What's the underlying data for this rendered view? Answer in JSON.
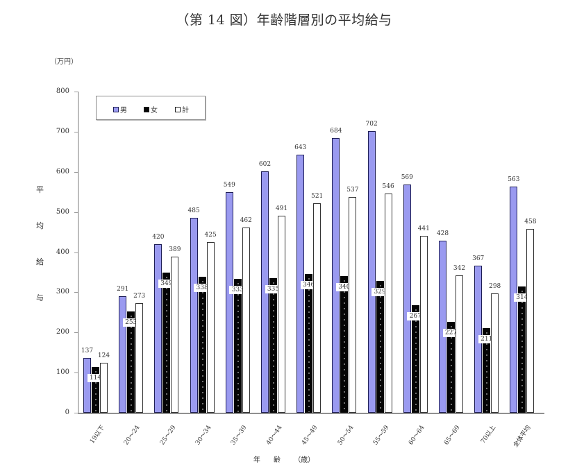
{
  "title": "（第 14 図）年齢階層別の平均給与",
  "unit_label": "（万円）",
  "y_axis_label_chars": [
    "平",
    "均",
    "給",
    "与"
  ],
  "x_axis_label_chars": [
    "年",
    "齢",
    "（歳）"
  ],
  "legend": [
    {
      "label": "男",
      "color": "#9a9af0"
    },
    {
      "label": "女",
      "color": "#050505"
    },
    {
      "label": "計",
      "color": "#ffffff"
    }
  ],
  "chart_data": {
    "type": "bar",
    "title": "（第 14 図）年齢階層別の平均給与",
    "xlabel": "年 齢（歳）",
    "ylabel": "平均給与",
    "unit": "万円",
    "ylim": [
      0,
      800
    ],
    "yticks": [
      0,
      100,
      200,
      300,
      400,
      500,
      600,
      700,
      800
    ],
    "grid": false,
    "legend_position": "top-left inside",
    "categories": [
      "19以下",
      "20～24",
      "25～29",
      "30～34",
      "35～39",
      "40～44",
      "45～49",
      "50～54",
      "55～59",
      "60～64",
      "65～69",
      "70以上",
      "全体平均"
    ],
    "series": [
      {
        "name": "男",
        "values": [
          137,
          291,
          420,
          485,
          549,
          602,
          643,
          684,
          702,
          569,
          428,
          367,
          563
        ]
      },
      {
        "name": "女",
        "values": [
          114,
          253,
          349,
          338,
          333,
          335,
          346,
          340,
          329,
          267,
          227,
          211,
          314
        ]
      },
      {
        "name": "計",
        "values": [
          124,
          273,
          389,
          425,
          462,
          491,
          521,
          537,
          546,
          441,
          342,
          298,
          458
        ]
      }
    ]
  }
}
